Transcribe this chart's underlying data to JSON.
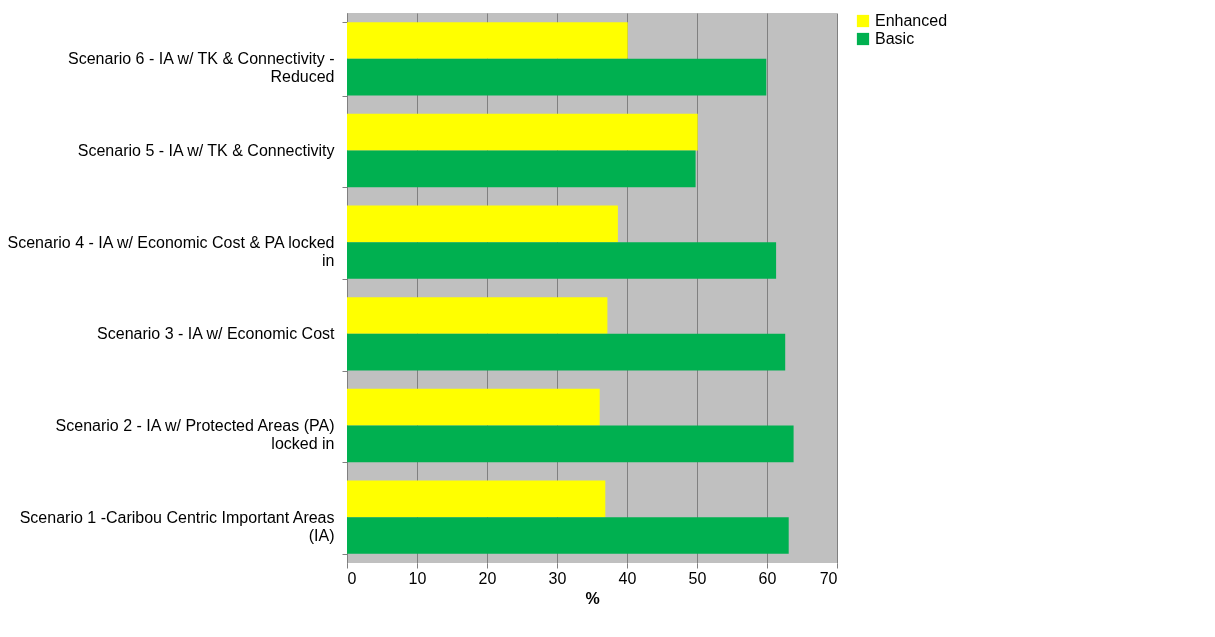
{
  "chart_data": {
    "type": "bar",
    "orientation": "horizontal",
    "xlabel": "%",
    "categories": [
      "Scenario 6 - IA w/ TK & Connectivity - Reduced",
      "Scenario 5 - IA w/ TK & Connectivity",
      "Scenario 4 - IA w/ Economic Cost & PA locked in",
      "Scenario 3 - IA w/ Economic Cost",
      "Scenario 2 - IA w/ Protected Areas (PA) locked in",
      "Scenario 1 -Caribou Centric Important Areas (IA)"
    ],
    "series": [
      {
        "name": "Enhanced",
        "color": "#ffff00",
        "values": [
          40.1,
          50.1,
          38.7,
          37.2,
          36.1,
          36.9
        ]
      },
      {
        "name": "Basic",
        "color": "#00b050",
        "values": [
          59.9,
          49.8,
          61.3,
          62.6,
          63.8,
          63.1
        ]
      }
    ],
    "xlim": [
      0,
      70
    ],
    "xticks": [
      0,
      10,
      20,
      30,
      40,
      50,
      60,
      70
    ],
    "grid": "x",
    "legend": "right"
  }
}
